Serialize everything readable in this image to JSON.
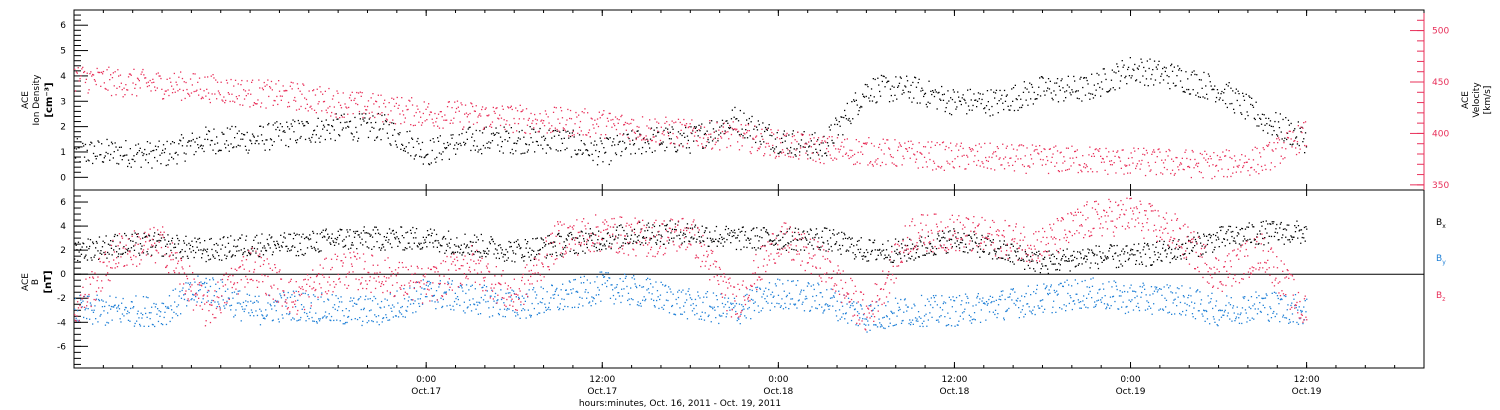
{
  "figure": {
    "xlabel": "hours:minutes, Oct. 16, 2011 - Oct. 19, 2011",
    "x_ticks": [
      {
        "value": "2011-10-17T00:00",
        "time": "0:00",
        "date": "Oct.17"
      },
      {
        "value": "2011-10-17T12:00",
        "time": "12:00",
        "date": "Oct.17"
      },
      {
        "value": "2011-10-18T00:00",
        "time": "0:00",
        "date": "Oct.18"
      },
      {
        "value": "2011-10-18T12:00",
        "time": "12:00",
        "date": "Oct.18"
      },
      {
        "value": "2011-10-19T00:00",
        "time": "0:00",
        "date": "Oct.19"
      },
      {
        "value": "2011-10-19T12:00",
        "time": "12:00",
        "date": "Oct.19"
      }
    ],
    "x_range": [
      "2011-10-16T00:00",
      "2011-10-19T20:00"
    ]
  },
  "colors": {
    "black": "#000000",
    "velocity": "#e8305a",
    "by": "#1e7fd6",
    "bz": "#e8305a"
  },
  "top_panel": {
    "left_label_1": "ACE",
    "left_label_2": "Ion Density",
    "left_label_3": "[cm⁻³]",
    "right_label_1": "ACE",
    "right_label_2": "Velocity",
    "right_label_3": "[km/s]"
  },
  "bottom_panel": {
    "left_label_1": "ACE",
    "left_label_2": "B",
    "left_label_3": "[nT]",
    "legend": [
      {
        "base": "B",
        "sub": "x",
        "color": "#000000"
      },
      {
        "base": "B",
        "sub": "y",
        "color": "#1e7fd6"
      },
      {
        "base": "B",
        "sub": "z",
        "color": "#e8305a"
      }
    ]
  },
  "chart_data": [
    {
      "type": "scatter",
      "title": "",
      "ylabel": "ACE Ion Density [cm⁻³]",
      "y2label": "ACE Velocity [km/s]",
      "ylim": [
        -0.5,
        6.6
      ],
      "y2lim": [
        345,
        520
      ],
      "yticks": [
        0,
        1,
        2,
        3,
        4,
        5,
        6
      ],
      "y2ticks": [
        350,
        400,
        450,
        500
      ],
      "grid": false,
      "series": [
        {
          "name": "",
          "color": "#000000",
          "axis": "left",
          "x": [
            "2011-10-16T00:00",
            "2011-10-16T03:00",
            "2011-10-16T06:00",
            "2011-10-16T09:00",
            "2011-10-16T12:00",
            "2011-10-16T15:00",
            "2011-10-16T18:00",
            "2011-10-16T21:00",
            "2011-10-17T00:00",
            "2011-10-17T03:00",
            "2011-10-17T06:00",
            "2011-10-17T09:00",
            "2011-10-17T12:00",
            "2011-10-17T15:00",
            "2011-10-17T18:00",
            "2011-10-17T21:00",
            "2011-10-18T00:00",
            "2011-10-18T03:00",
            "2011-10-18T06:00",
            "2011-10-18T09:00",
            "2011-10-18T12:00",
            "2011-10-18T15:00",
            "2011-10-18T18:00",
            "2011-10-18T21:00",
            "2011-10-19T00:00",
            "2011-10-19T03:00",
            "2011-10-19T06:00",
            "2011-10-19T09:00",
            "2011-10-19T12:00"
          ],
          "values": [
            1.0,
            1.0,
            0.9,
            1.5,
            1.5,
            1.8,
            2.0,
            2.0,
            1.0,
            1.5,
            1.5,
            1.5,
            1.0,
            1.5,
            1.5,
            2.3,
            1.5,
            1.2,
            3.5,
            3.5,
            3.0,
            3.0,
            3.5,
            3.5,
            4.3,
            4.0,
            3.5,
            2.3,
            1.5
          ]
        },
        {
          "name": "",
          "color": "#e8305a",
          "axis": "right",
          "x": [
            "2011-10-16T00:00",
            "2011-10-16T03:00",
            "2011-10-16T06:00",
            "2011-10-16T09:00",
            "2011-10-16T12:00",
            "2011-10-16T15:00",
            "2011-10-16T18:00",
            "2011-10-16T21:00",
            "2011-10-17T00:00",
            "2011-10-17T03:00",
            "2011-10-17T06:00",
            "2011-10-17T09:00",
            "2011-10-17T12:00",
            "2011-10-17T15:00",
            "2011-10-17T18:00",
            "2011-10-17T21:00",
            "2011-10-18T00:00",
            "2011-10-18T03:00",
            "2011-10-18T06:00",
            "2011-10-18T09:00",
            "2011-10-18T12:00",
            "2011-10-18T15:00",
            "2011-10-18T18:00",
            "2011-10-18T21:00",
            "2011-10-19T00:00",
            "2011-10-19T03:00",
            "2011-10-19T06:00",
            "2011-10-19T09:00",
            "2011-10-19T12:00"
          ],
          "values": [
            455,
            450,
            448,
            445,
            440,
            437,
            430,
            425,
            420,
            418,
            415,
            412,
            410,
            405,
            400,
            398,
            390,
            385,
            383,
            380,
            378,
            377,
            375,
            375,
            373,
            372,
            370,
            375,
            400
          ]
        }
      ]
    },
    {
      "type": "scatter",
      "title": "",
      "ylabel": "ACE B [nT]",
      "ylim": [
        -7.8,
        7.0
      ],
      "yticks": [
        -6,
        -4,
        -2,
        0,
        2,
        4,
        6
      ],
      "grid": false,
      "zero_line": true,
      "series": [
        {
          "name": "Bx",
          "color": "#000000",
          "x": [
            "2011-10-16T00:00",
            "2011-10-16T03:00",
            "2011-10-16T06:00",
            "2011-10-16T09:00",
            "2011-10-16T12:00",
            "2011-10-16T15:00",
            "2011-10-16T18:00",
            "2011-10-16T21:00",
            "2011-10-17T00:00",
            "2011-10-17T03:00",
            "2011-10-17T06:00",
            "2011-10-17T09:00",
            "2011-10-17T12:00",
            "2011-10-17T15:00",
            "2011-10-17T18:00",
            "2011-10-17T21:00",
            "2011-10-18T00:00",
            "2011-10-18T03:00",
            "2011-10-18T06:00",
            "2011-10-18T09:00",
            "2011-10-18T12:00",
            "2011-10-18T15:00",
            "2011-10-18T18:00",
            "2011-10-18T21:00",
            "2011-10-19T00:00",
            "2011-10-19T03:00",
            "2011-10-19T06:00",
            "2011-10-19T09:00",
            "2011-10-19T12:00"
          ],
          "values": [
            2.0,
            2.5,
            2.5,
            2.0,
            2.5,
            2.5,
            3.0,
            3.0,
            3.0,
            2.5,
            2.0,
            2.5,
            3.0,
            3.5,
            3.5,
            3.0,
            3.0,
            3.0,
            2.0,
            2.0,
            3.0,
            2.0,
            1.0,
            1.5,
            1.5,
            2.0,
            3.0,
            3.5,
            3.5
          ]
        },
        {
          "name": "By",
          "color": "#1e7fd6",
          "x": [
            "2011-10-16T00:00",
            "2011-10-16T03:00",
            "2011-10-16T06:00",
            "2011-10-16T09:00",
            "2011-10-16T12:00",
            "2011-10-16T15:00",
            "2011-10-16T18:00",
            "2011-10-16T21:00",
            "2011-10-17T00:00",
            "2011-10-17T03:00",
            "2011-10-17T06:00",
            "2011-10-17T09:00",
            "2011-10-17T12:00",
            "2011-10-17T15:00",
            "2011-10-17T18:00",
            "2011-10-17T21:00",
            "2011-10-18T00:00",
            "2011-10-18T03:00",
            "2011-10-18T06:00",
            "2011-10-18T09:00",
            "2011-10-18T12:00",
            "2011-10-18T15:00",
            "2011-10-18T18:00",
            "2011-10-18T21:00",
            "2011-10-19T00:00",
            "2011-10-19T03:00",
            "2011-10-19T06:00",
            "2011-10-19T09:00",
            "2011-10-19T12:00"
          ],
          "values": [
            -3.0,
            -3.0,
            -3.0,
            -1.0,
            -3.0,
            -2.5,
            -3.0,
            -3.0,
            -1.5,
            -2.0,
            -2.5,
            -2.0,
            -1.0,
            -1.5,
            -2.5,
            -3.0,
            -1.5,
            -2.0,
            -3.5,
            -3.0,
            -3.0,
            -2.5,
            -2.0,
            -1.5,
            -2.0,
            -2.0,
            -3.0,
            -2.5,
            -3.0
          ]
        },
        {
          "name": "Bz",
          "color": "#e8305a",
          "x": [
            "2011-10-16T00:00",
            "2011-10-16T03:00",
            "2011-10-16T06:00",
            "2011-10-16T09:00",
            "2011-10-16T12:00",
            "2011-10-16T15:00",
            "2011-10-16T18:00",
            "2011-10-16T21:00",
            "2011-10-17T00:00",
            "2011-10-17T03:00",
            "2011-10-17T06:00",
            "2011-10-17T09:00",
            "2011-10-17T12:00",
            "2011-10-17T15:00",
            "2011-10-17T18:00",
            "2011-10-17T21:00",
            "2011-10-18T00:00",
            "2011-10-18T03:00",
            "2011-10-18T06:00",
            "2011-10-18T09:00",
            "2011-10-18T12:00",
            "2011-10-18T15:00",
            "2011-10-18T18:00",
            "2011-10-18T21:00",
            "2011-10-19T00:00",
            "2011-10-19T03:00",
            "2011-10-19T06:00",
            "2011-10-19T09:00",
            "2011-10-19T12:00"
          ],
          "values": [
            -3.0,
            2.0,
            2.5,
            -3.0,
            1.0,
            -2.0,
            0.5,
            0.0,
            -1.0,
            1.0,
            -2.0,
            3.0,
            3.5,
            3.0,
            3.5,
            -2.5,
            3.0,
            1.0,
            -3.5,
            3.5,
            3.5,
            3.0,
            2.5,
            4.5,
            5.0,
            3.5,
            0.0,
            2.0,
            -3.5
          ]
        }
      ]
    }
  ]
}
